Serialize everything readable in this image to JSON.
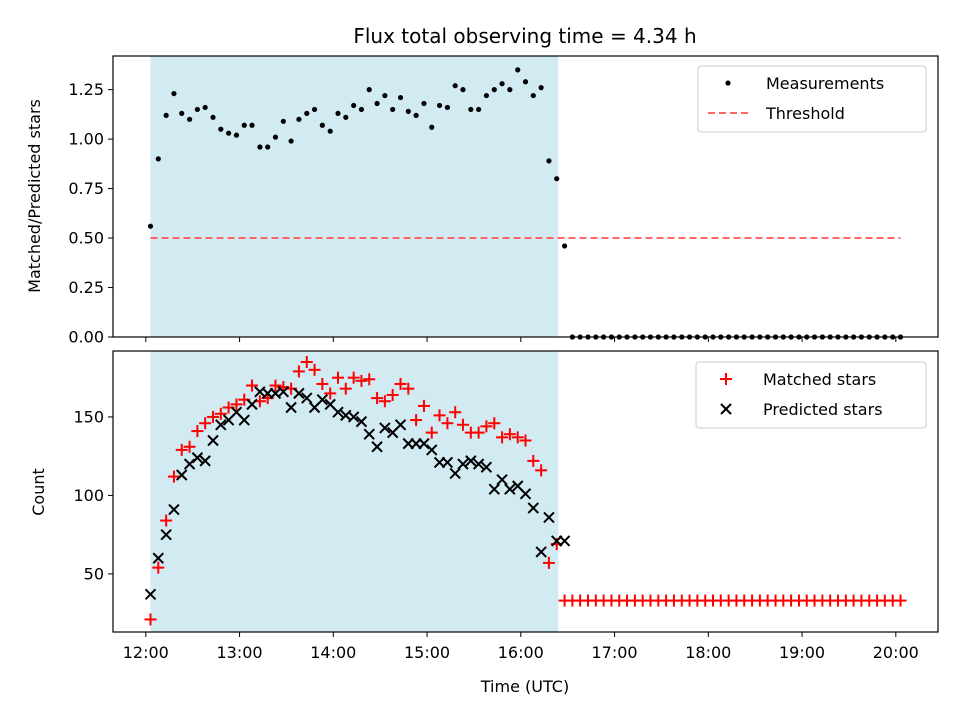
{
  "title": "Flux total observing time = 4.34 h",
  "colors": {
    "span": "#add8e6",
    "measure": "#000000",
    "threshold": "#ff6666",
    "matched": "#ff0000",
    "predicted": "#000000"
  },
  "chart_data": [
    {
      "type": "scatter",
      "ylabel": "Matched/Predicted stars",
      "xlim": [
        11.65,
        20.45
      ],
      "ylim": [
        0,
        1.42
      ],
      "yticks": [
        "0.00",
        "0.25",
        "0.50",
        "0.75",
        "1.00",
        "1.25"
      ],
      "ytick_values": [
        0,
        0.25,
        0.5,
        0.75,
        1.0,
        1.25
      ],
      "shaded_span": [
        12.05,
        16.4
      ],
      "legend": {
        "placement": "upper right",
        "entries": [
          "Measurements",
          "Threshold"
        ]
      },
      "threshold": {
        "name": "Threshold",
        "y": 0.5,
        "x": [
          12.05,
          20.05
        ]
      },
      "series": [
        {
          "name": "Measurements",
          "x": [
            12.05,
            12.133,
            12.217,
            12.3,
            12.383,
            12.467,
            12.55,
            12.633,
            12.717,
            12.8,
            12.883,
            12.967,
            13.05,
            13.133,
            13.217,
            13.3,
            13.383,
            13.467,
            13.55,
            13.633,
            13.717,
            13.8,
            13.883,
            13.967,
            14.05,
            14.133,
            14.217,
            14.3,
            14.383,
            14.467,
            14.55,
            14.633,
            14.717,
            14.8,
            14.883,
            14.967,
            15.05,
            15.133,
            15.217,
            15.3,
            15.383,
            15.467,
            15.55,
            15.633,
            15.717,
            15.8,
            15.883,
            15.967,
            16.05,
            16.133,
            16.217,
            16.3,
            16.383,
            16.467,
            16.55,
            16.633,
            16.717,
            16.8,
            16.883,
            16.967,
            17.05,
            17.133,
            17.217,
            17.3,
            17.383,
            17.467,
            17.55,
            17.633,
            17.717,
            17.8,
            17.883,
            17.967,
            18.05,
            18.133,
            18.217,
            18.3,
            18.383,
            18.467,
            18.55,
            18.633,
            18.717,
            18.8,
            18.883,
            18.967,
            19.05,
            19.133,
            19.217,
            19.3,
            19.383,
            19.467,
            19.55,
            19.633,
            19.717,
            19.8,
            19.883,
            19.967,
            20.05
          ],
          "y": [
            0.56,
            0.9,
            1.12,
            1.23,
            1.13,
            1.1,
            1.15,
            1.16,
            1.11,
            1.05,
            1.03,
            1.02,
            1.07,
            1.07,
            0.96,
            0.96,
            1.01,
            1.09,
            0.99,
            1.1,
            1.13,
            1.15,
            1.07,
            1.04,
            1.13,
            1.11,
            1.17,
            1.15,
            1.25,
            1.18,
            1.22,
            1.15,
            1.21,
            1.14,
            1.12,
            1.18,
            1.06,
            1.17,
            1.16,
            1.27,
            1.25,
            1.15,
            1.15,
            1.22,
            1.25,
            1.28,
            1.25,
            1.35,
            1.29,
            1.22,
            1.26,
            0.89,
            0.8,
            0.46,
            0,
            0,
            0,
            0,
            0,
            0,
            0,
            0,
            0,
            0,
            0,
            0,
            0,
            0,
            0,
            0,
            0,
            0,
            0,
            0,
            0,
            0,
            0,
            0,
            0,
            0,
            0,
            0,
            0,
            0,
            0,
            0,
            0,
            0,
            0,
            0,
            0,
            0,
            0,
            0,
            0,
            0,
            0
          ]
        }
      ]
    },
    {
      "type": "scatter",
      "xlabel": "Time (UTC)",
      "ylabel": "Count",
      "xlim": [
        11.65,
        20.45
      ],
      "ylim": [
        13,
        192
      ],
      "xticks": [
        "12:00",
        "13:00",
        "14:00",
        "15:00",
        "16:00",
        "17:00",
        "18:00",
        "19:00",
        "20:00"
      ],
      "xtick_values": [
        12,
        13,
        14,
        15,
        16,
        17,
        18,
        19,
        20
      ],
      "yticks": [
        "50",
        "100",
        "150"
      ],
      "ytick_values": [
        50,
        100,
        150
      ],
      "shaded_span": [
        12.05,
        16.4
      ],
      "legend": {
        "placement": "upper right",
        "entries": [
          "Matched stars",
          "Predicted stars"
        ]
      },
      "series": [
        {
          "name": "Matched stars",
          "marker": "plus",
          "x": [
            12.05,
            12.133,
            12.217,
            12.3,
            12.383,
            12.467,
            12.55,
            12.633,
            12.717,
            12.8,
            12.883,
            12.967,
            13.05,
            13.133,
            13.217,
            13.3,
            13.383,
            13.467,
            13.55,
            13.633,
            13.717,
            13.8,
            13.883,
            13.967,
            14.05,
            14.133,
            14.217,
            14.3,
            14.383,
            14.467,
            14.55,
            14.633,
            14.717,
            14.8,
            14.883,
            14.967,
            15.05,
            15.133,
            15.217,
            15.3,
            15.383,
            15.467,
            15.55,
            15.633,
            15.717,
            15.8,
            15.883,
            15.967,
            16.05,
            16.133,
            16.217,
            16.3,
            16.383,
            16.467,
            16.55,
            16.633,
            16.717,
            16.8,
            16.883,
            16.967,
            17.05,
            17.133,
            17.217,
            17.3,
            17.383,
            17.467,
            17.55,
            17.633,
            17.717,
            17.8,
            17.883,
            17.967,
            18.05,
            18.133,
            18.217,
            18.3,
            18.383,
            18.467,
            18.55,
            18.633,
            18.717,
            18.8,
            18.883,
            18.967,
            19.05,
            19.133,
            19.217,
            19.3,
            19.383,
            19.467,
            19.55,
            19.633,
            19.717,
            19.8,
            19.883,
            19.967,
            20.05
          ],
          "y": [
            21,
            54,
            84,
            112,
            129,
            131,
            141,
            146,
            150,
            152,
            156,
            158,
            161,
            170,
            160,
            162,
            170,
            169,
            168,
            179,
            185,
            180,
            171,
            165,
            175,
            168,
            175,
            173,
            174,
            162,
            160,
            164,
            171,
            168,
            148,
            157,
            140,
            151,
            146,
            153,
            145,
            140,
            140,
            144,
            146,
            137,
            139,
            137,
            135,
            122,
            116,
            57,
            69,
            33,
            33,
            33,
            33,
            33,
            33,
            33,
            33,
            33,
            33,
            33,
            33,
            33,
            33,
            33,
            33,
            33,
            33,
            33,
            33,
            33,
            33,
            33,
            33,
            33,
            33,
            33,
            33,
            33,
            33,
            33,
            33,
            33,
            33,
            33,
            33,
            33,
            33,
            33,
            33,
            33,
            33,
            33,
            33
          ]
        },
        {
          "name": "Predicted stars",
          "marker": "x",
          "x": [
            12.05,
            12.133,
            12.217,
            12.3,
            12.383,
            12.467,
            12.55,
            12.633,
            12.717,
            12.8,
            12.883,
            12.967,
            13.05,
            13.133,
            13.217,
            13.3,
            13.383,
            13.467,
            13.55,
            13.633,
            13.717,
            13.8,
            13.883,
            13.967,
            14.05,
            14.133,
            14.217,
            14.3,
            14.383,
            14.467,
            14.55,
            14.633,
            14.717,
            14.8,
            14.883,
            14.967,
            15.05,
            15.133,
            15.217,
            15.3,
            15.383,
            15.467,
            15.55,
            15.633,
            15.717,
            15.8,
            15.883,
            15.967,
            16.05,
            16.133,
            16.217,
            16.3,
            16.383,
            16.467
          ],
          "y": [
            37,
            60,
            75,
            91,
            113,
            120,
            124,
            122,
            135,
            145,
            148,
            153,
            148,
            158,
            166,
            165,
            165,
            166,
            156,
            165,
            162,
            156,
            161,
            158,
            153,
            151,
            150,
            147,
            139,
            131,
            143,
            140,
            145,
            133,
            133,
            133,
            129,
            121,
            121,
            114,
            120,
            122,
            120,
            118,
            104,
            110,
            104,
            106,
            101,
            92,
            64,
            86,
            71,
            71
          ]
        }
      ]
    }
  ]
}
